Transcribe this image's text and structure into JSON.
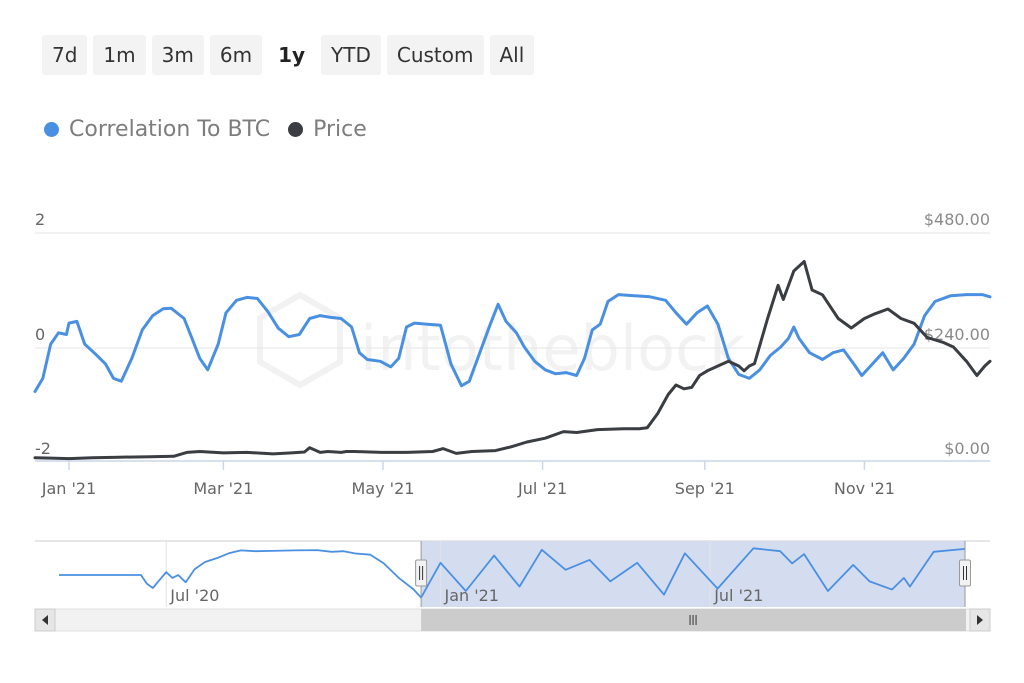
{
  "range_selector": {
    "buttons": [
      {
        "label": "7d"
      },
      {
        "label": "1m"
      },
      {
        "label": "3m"
      },
      {
        "label": "6m"
      },
      {
        "label": "1y"
      },
      {
        "label": "YTD"
      },
      {
        "label": "Custom"
      },
      {
        "label": "All"
      }
    ],
    "selected": "1y"
  },
  "watermark": "intotheblock",
  "colors": {
    "correlation": "#4a90e2",
    "price": "#3a3d42",
    "navigator_fill": "#d4ddf0"
  },
  "chart_data": {
    "type": "line",
    "legend": {
      "placement": "top-left",
      "entries": [
        "Correlation To BTC",
        "Price"
      ]
    },
    "x_range": [
      "2020-12-19",
      "2021-12-19"
    ],
    "x_ticks": [
      {
        "date": "2021-01-01",
        "label": "Jan '21"
      },
      {
        "date": "2021-03-01",
        "label": "Mar '21"
      },
      {
        "date": "2021-05-01",
        "label": "May '21"
      },
      {
        "date": "2021-07-01",
        "label": "Jul '21"
      },
      {
        "date": "2021-09-01",
        "label": "Sep '21"
      },
      {
        "date": "2021-11-01",
        "label": "Nov '21"
      }
    ],
    "y_left": {
      "min": -2,
      "max": 2,
      "ticks": [
        {
          "value": 2,
          "label": "2"
        },
        {
          "value": 0,
          "label": "0"
        },
        {
          "value": -2,
          "label": "-2"
        }
      ]
    },
    "y_right": {
      "min": 0,
      "max": 480,
      "ticks": [
        {
          "value": 480,
          "label": "$480.00"
        },
        {
          "value": 240,
          "label": "$240.00"
        },
        {
          "value": 0,
          "label": "$0.00"
        }
      ]
    },
    "grid": true,
    "series": [
      {
        "name": "Correlation To BTC",
        "axis": "left",
        "points": [
          [
            "2020-12-19",
            -0.78
          ],
          [
            "2020-12-22",
            -0.55
          ],
          [
            "2020-12-25",
            0.05
          ],
          [
            "2020-12-28",
            0.25
          ],
          [
            "2020-12-31",
            0.22
          ],
          [
            "2021-01-01",
            0.42
          ],
          [
            "2021-01-04",
            0.45
          ],
          [
            "2021-01-07",
            0.05
          ],
          [
            "2021-01-11",
            -0.12
          ],
          [
            "2021-01-15",
            -0.3
          ],
          [
            "2021-01-18",
            -0.55
          ],
          [
            "2021-01-21",
            -0.6
          ],
          [
            "2021-01-25",
            -0.2
          ],
          [
            "2021-01-29",
            0.3
          ],
          [
            "2021-02-02",
            0.55
          ],
          [
            "2021-02-06",
            0.67
          ],
          [
            "2021-02-09",
            0.68
          ],
          [
            "2021-02-14",
            0.5
          ],
          [
            "2021-02-17",
            0.15
          ],
          [
            "2021-02-20",
            -0.2
          ],
          [
            "2021-02-23",
            -0.4
          ],
          [
            "2021-02-27",
            0.05
          ],
          [
            "2021-03-02",
            0.6
          ],
          [
            "2021-03-06",
            0.82
          ],
          [
            "2021-03-10",
            0.87
          ],
          [
            "2021-03-14",
            0.85
          ],
          [
            "2021-03-18",
            0.62
          ],
          [
            "2021-03-22",
            0.33
          ],
          [
            "2021-03-26",
            0.18
          ],
          [
            "2021-03-30",
            0.22
          ],
          [
            "2021-04-03",
            0.5
          ],
          [
            "2021-04-07",
            0.55
          ],
          [
            "2021-04-11",
            0.52
          ],
          [
            "2021-04-15",
            0.5
          ],
          [
            "2021-04-19",
            0.35
          ],
          [
            "2021-04-22",
            -0.1
          ],
          [
            "2021-04-25",
            -0.22
          ],
          [
            "2021-04-30",
            -0.25
          ],
          [
            "2021-05-04",
            -0.35
          ],
          [
            "2021-05-07",
            -0.2
          ],
          [
            "2021-05-10",
            0.35
          ],
          [
            "2021-05-13",
            0.42
          ],
          [
            "2021-05-18",
            0.4
          ],
          [
            "2021-05-23",
            0.38
          ],
          [
            "2021-05-27",
            -0.3
          ],
          [
            "2021-05-31",
            -0.68
          ],
          [
            "2021-06-03",
            -0.6
          ],
          [
            "2021-06-07",
            -0.1
          ],
          [
            "2021-06-11",
            0.4
          ],
          [
            "2021-06-14",
            0.75
          ],
          [
            "2021-06-17",
            0.45
          ],
          [
            "2021-06-21",
            0.25
          ],
          [
            "2021-06-24",
            0.0
          ],
          [
            "2021-06-28",
            -0.25
          ],
          [
            "2021-07-02",
            -0.4
          ],
          [
            "2021-07-06",
            -0.47
          ],
          [
            "2021-07-10",
            -0.45
          ],
          [
            "2021-07-14",
            -0.5
          ],
          [
            "2021-07-17",
            -0.2
          ],
          [
            "2021-07-20",
            0.3
          ],
          [
            "2021-07-23",
            0.4
          ],
          [
            "2021-07-26",
            0.8
          ],
          [
            "2021-07-30",
            0.92
          ],
          [
            "2021-08-05",
            0.9
          ],
          [
            "2021-08-11",
            0.88
          ],
          [
            "2021-08-17",
            0.82
          ],
          [
            "2021-08-21",
            0.6
          ],
          [
            "2021-08-25",
            0.4
          ],
          [
            "2021-08-29",
            0.6
          ],
          [
            "2021-09-02",
            0.72
          ],
          [
            "2021-09-06",
            0.4
          ],
          [
            "2021-09-10",
            -0.2
          ],
          [
            "2021-09-14",
            -0.48
          ],
          [
            "2021-09-18",
            -0.55
          ],
          [
            "2021-09-22",
            -0.4
          ],
          [
            "2021-09-26",
            -0.15
          ],
          [
            "2021-09-30",
            0.0
          ],
          [
            "2021-10-03",
            0.15
          ],
          [
            "2021-10-05",
            0.35
          ],
          [
            "2021-10-07",
            0.15
          ],
          [
            "2021-10-11",
            -0.1
          ],
          [
            "2021-10-16",
            -0.22
          ],
          [
            "2021-10-20",
            -0.1
          ],
          [
            "2021-10-24",
            -0.05
          ],
          [
            "2021-10-28",
            -0.3
          ],
          [
            "2021-10-31",
            -0.5
          ],
          [
            "2021-11-04",
            -0.3
          ],
          [
            "2021-11-08",
            -0.1
          ],
          [
            "2021-11-12",
            -0.4
          ],
          [
            "2021-11-16",
            -0.2
          ],
          [
            "2021-11-20",
            0.05
          ],
          [
            "2021-11-24",
            0.55
          ],
          [
            "2021-11-28",
            0.8
          ],
          [
            "2021-12-04",
            0.9
          ],
          [
            "2021-12-10",
            0.92
          ],
          [
            "2021-12-16",
            0.92
          ],
          [
            "2021-12-19",
            0.88
          ]
        ]
      },
      {
        "name": "Price",
        "axis": "right",
        "points": [
          [
            "2020-12-19",
            7
          ],
          [
            "2020-12-25",
            6
          ],
          [
            "2021-01-01",
            5
          ],
          [
            "2021-01-10",
            7
          ],
          [
            "2021-01-20",
            8
          ],
          [
            "2021-02-01",
            9
          ],
          [
            "2021-02-10",
            10
          ],
          [
            "2021-02-15",
            18
          ],
          [
            "2021-02-20",
            20
          ],
          [
            "2021-03-01",
            17
          ],
          [
            "2021-03-10",
            18
          ],
          [
            "2021-03-20",
            15
          ],
          [
            "2021-03-27",
            17
          ],
          [
            "2021-04-01",
            19
          ],
          [
            "2021-04-03",
            28
          ],
          [
            "2021-04-07",
            18
          ],
          [
            "2021-04-10",
            20
          ],
          [
            "2021-04-15",
            18
          ],
          [
            "2021-04-17",
            20
          ],
          [
            "2021-04-20",
            20
          ],
          [
            "2021-05-01",
            18
          ],
          [
            "2021-05-10",
            18
          ],
          [
            "2021-05-20",
            20
          ],
          [
            "2021-05-24",
            26
          ],
          [
            "2021-05-29",
            16
          ],
          [
            "2021-06-04",
            20
          ],
          [
            "2021-06-13",
            22
          ],
          [
            "2021-06-19",
            30
          ],
          [
            "2021-06-25",
            40
          ],
          [
            "2021-07-02",
            48
          ],
          [
            "2021-07-09",
            62
          ],
          [
            "2021-07-14",
            60
          ],
          [
            "2021-07-22",
            66
          ],
          [
            "2021-08-01",
            68
          ],
          [
            "2021-08-07",
            68
          ],
          [
            "2021-08-10",
            70
          ],
          [
            "2021-08-14",
            100
          ],
          [
            "2021-08-18",
            140
          ],
          [
            "2021-08-21",
            160
          ],
          [
            "2021-08-24",
            152
          ],
          [
            "2021-08-27",
            155
          ],
          [
            "2021-08-30",
            180
          ],
          [
            "2021-09-02",
            190
          ],
          [
            "2021-09-06",
            200
          ],
          [
            "2021-09-10",
            210
          ],
          [
            "2021-09-14",
            200
          ],
          [
            "2021-09-16",
            190
          ],
          [
            "2021-09-18",
            200
          ],
          [
            "2021-09-20",
            205
          ],
          [
            "2021-09-25",
            300
          ],
          [
            "2021-09-29",
            370
          ],
          [
            "2021-10-01",
            340
          ],
          [
            "2021-10-05",
            400
          ],
          [
            "2021-10-09",
            420
          ],
          [
            "2021-10-12",
            360
          ],
          [
            "2021-10-16",
            350
          ],
          [
            "2021-10-22",
            300
          ],
          [
            "2021-10-27",
            280
          ],
          [
            "2021-11-01",
            300
          ],
          [
            "2021-11-05",
            310
          ],
          [
            "2021-11-10",
            320
          ],
          [
            "2021-11-15",
            300
          ],
          [
            "2021-11-20",
            290
          ],
          [
            "2021-11-25",
            260
          ],
          [
            "2021-12-01",
            250
          ],
          [
            "2021-12-05",
            240
          ],
          [
            "2021-12-10",
            210
          ],
          [
            "2021-12-14",
            180
          ],
          [
            "2021-12-17",
            200
          ],
          [
            "2021-12-19",
            210
          ]
        ]
      }
    ],
    "navigator": {
      "x_range": [
        "2020-04-20",
        "2021-12-19"
      ],
      "selected_range": [
        "2020-12-19",
        "2021-12-19"
      ],
      "labels": [
        {
          "date": "2020-07-01",
          "label": "Jul '20"
        },
        {
          "date": "2021-01-01",
          "label": "Jan '21"
        },
        {
          "date": "2021-07-01",
          "label": "Jul '21"
        }
      ],
      "series": [
        [
          "2020-04-20",
          0.0
        ],
        [
          "2020-06-14",
          0.0
        ],
        [
          "2020-06-18",
          -0.3
        ],
        [
          "2020-06-22",
          -0.45
        ],
        [
          "2020-06-26",
          -0.2
        ],
        [
          "2020-07-01",
          0.1
        ],
        [
          "2020-07-05",
          -0.1
        ],
        [
          "2020-07-09",
          0.0
        ],
        [
          "2020-07-14",
          -0.25
        ],
        [
          "2020-07-20",
          0.2
        ],
        [
          "2020-07-27",
          0.45
        ],
        [
          "2020-08-05",
          0.6
        ],
        [
          "2020-08-12",
          0.75
        ],
        [
          "2020-08-20",
          0.85
        ],
        [
          "2020-08-30",
          0.82
        ],
        [
          "2020-09-10",
          0.83
        ],
        [
          "2020-09-25",
          0.85
        ],
        [
          "2020-10-10",
          0.86
        ],
        [
          "2020-10-20",
          0.8
        ],
        [
          "2020-10-28",
          0.82
        ],
        [
          "2020-11-05",
          0.74
        ],
        [
          "2020-11-15",
          0.7
        ],
        [
          "2020-11-24",
          0.4
        ],
        [
          "2020-12-04",
          -0.1
        ],
        [
          "2020-12-14",
          -0.5
        ],
        [
          "2020-12-19",
          -0.78
        ],
        [
          "2021-01-01",
          0.42
        ],
        [
          "2021-01-18",
          -0.55
        ],
        [
          "2021-02-06",
          0.67
        ],
        [
          "2021-02-23",
          -0.4
        ],
        [
          "2021-03-10",
          0.87
        ],
        [
          "2021-03-26",
          0.18
        ],
        [
          "2021-04-11",
          0.52
        ],
        [
          "2021-04-25",
          -0.22
        ],
        [
          "2021-05-13",
          0.42
        ],
        [
          "2021-05-31",
          -0.68
        ],
        [
          "2021-06-14",
          0.75
        ],
        [
          "2021-07-06",
          -0.47
        ],
        [
          "2021-07-30",
          0.92
        ],
        [
          "2021-08-17",
          0.82
        ],
        [
          "2021-08-25",
          0.4
        ],
        [
          "2021-09-02",
          0.72
        ],
        [
          "2021-09-18",
          -0.55
        ],
        [
          "2021-10-05",
          0.35
        ],
        [
          "2021-10-16",
          -0.22
        ],
        [
          "2021-10-31",
          -0.5
        ],
        [
          "2021-11-08",
          -0.1
        ],
        [
          "2021-11-12",
          -0.4
        ],
        [
          "2021-11-28",
          0.8
        ],
        [
          "2021-12-19",
          0.9
        ]
      ]
    }
  }
}
